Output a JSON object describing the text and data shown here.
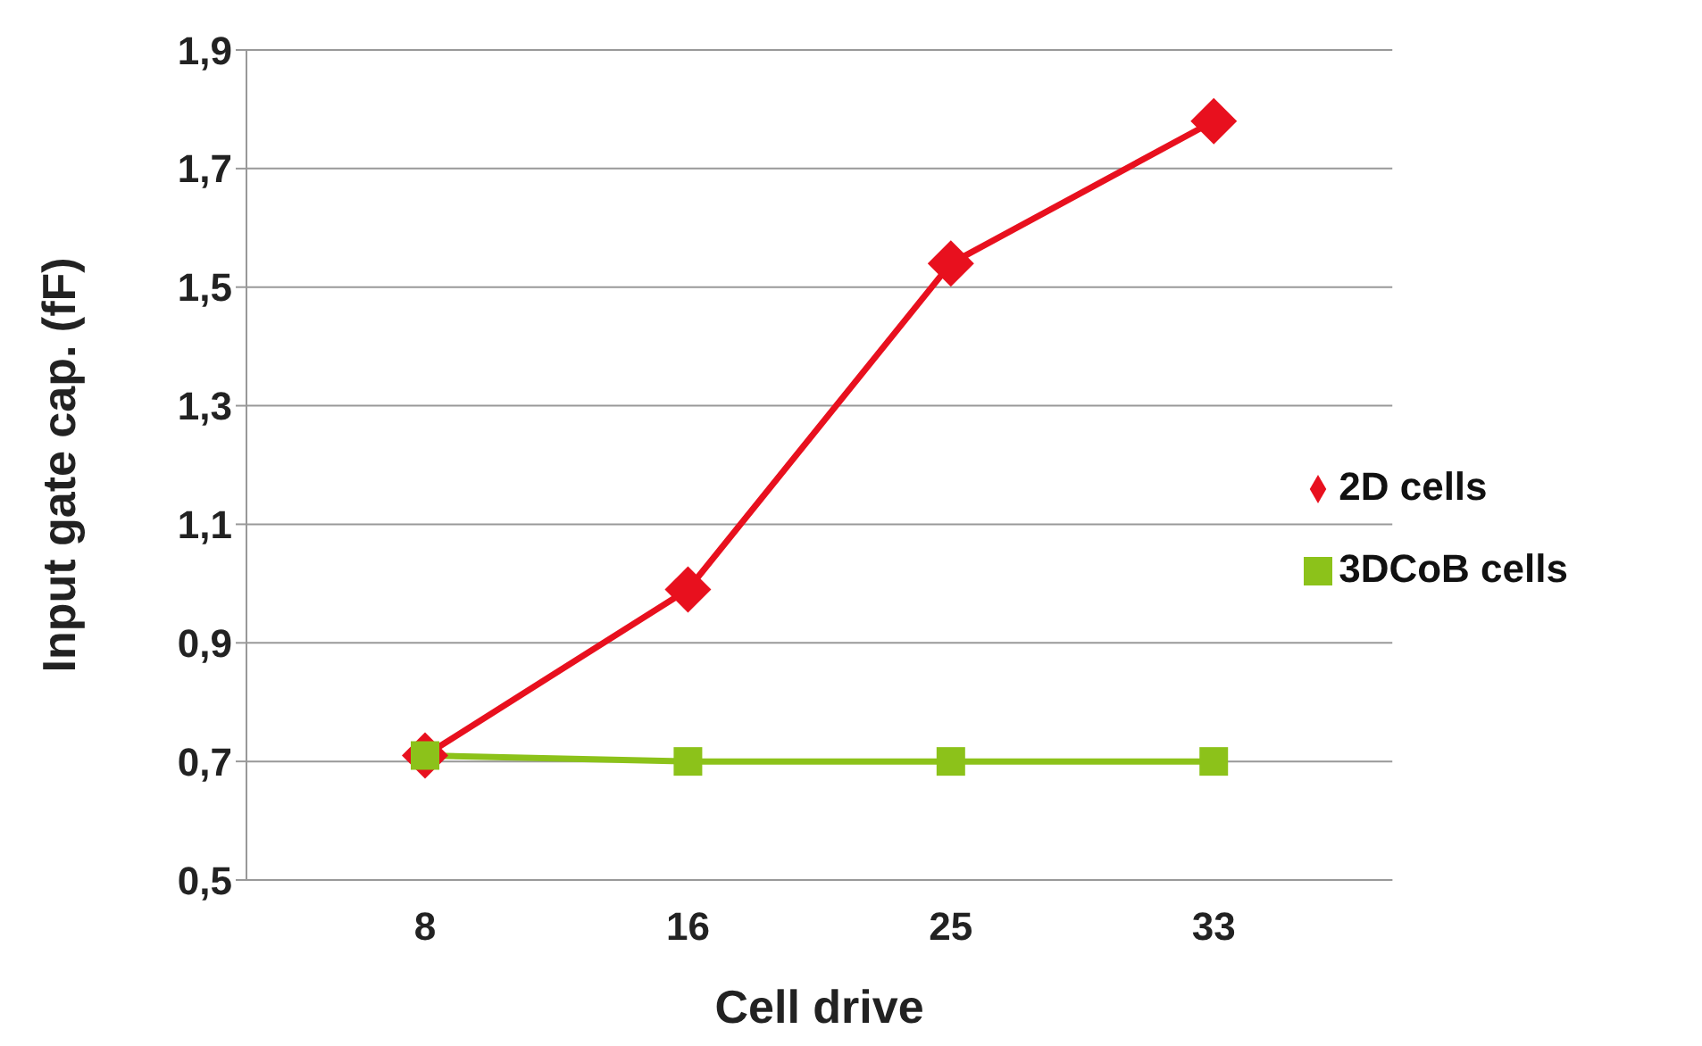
{
  "chart_data": {
    "type": "line",
    "xlabel": "Cell drive",
    "ylabel": "Input gate cap. (fF)",
    "categories": [
      "8",
      "16",
      "25",
      "33"
    ],
    "series": [
      {
        "name": "2D cells",
        "color": "#e8101e",
        "marker": "diamond",
        "values": [
          0.71,
          0.99,
          1.54,
          1.78
        ]
      },
      {
        "name": "3DCoB cells",
        "color": "#8cc21a",
        "marker": "square",
        "values": [
          0.71,
          0.7,
          0.7,
          0.7
        ]
      }
    ],
    "ylim": [
      0.5,
      1.9
    ],
    "yticks": [
      {
        "value": 0.5,
        "label": "0,5"
      },
      {
        "value": 0.7,
        "label": "0,7"
      },
      {
        "value": 0.9,
        "label": "0,9"
      },
      {
        "value": 1.1,
        "label": "1,1"
      },
      {
        "value": 1.3,
        "label": "1,3"
      },
      {
        "value": 1.5,
        "label": "1,5"
      },
      {
        "value": 1.7,
        "label": "1,7"
      },
      {
        "value": 1.9,
        "label": "1,9"
      }
    ],
    "grid": "y",
    "legend": "right",
    "line_style": "solid"
  }
}
